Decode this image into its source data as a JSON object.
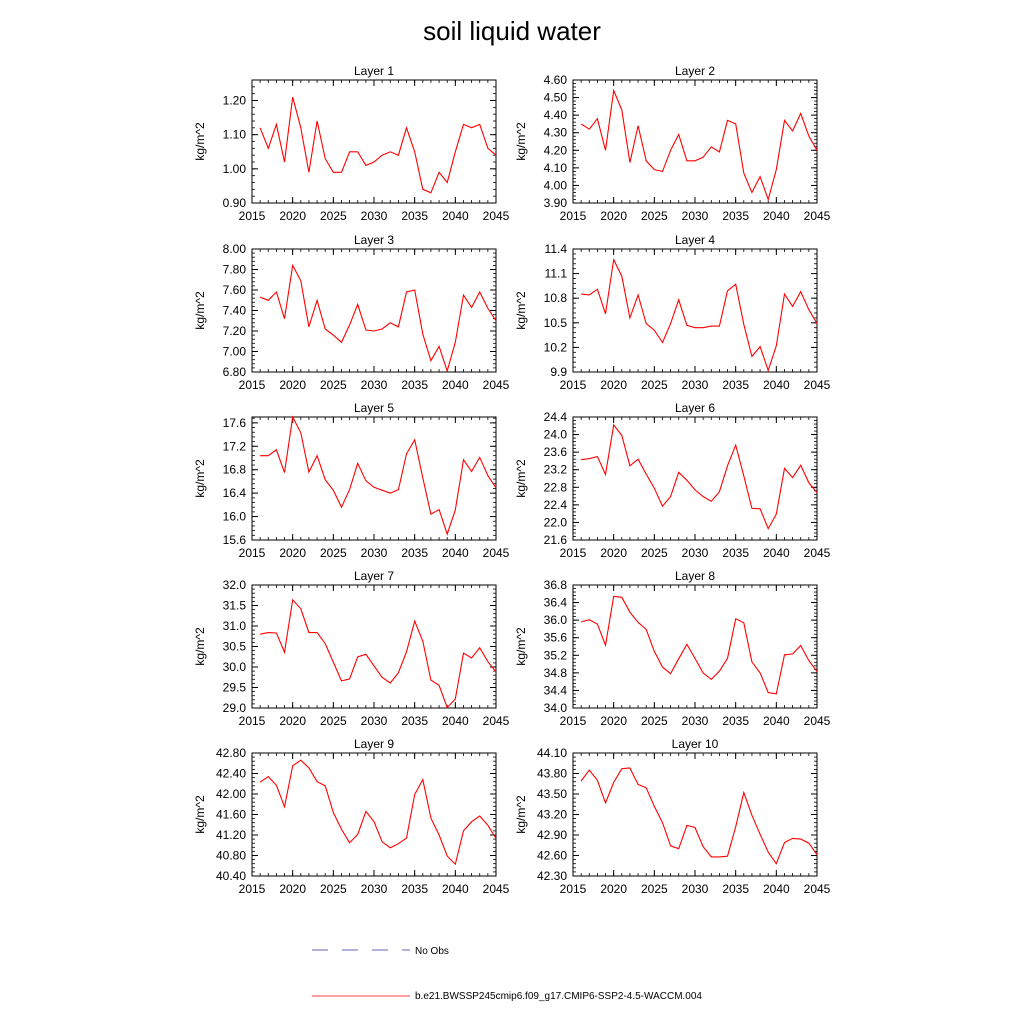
{
  "title": "soil liquid water",
  "colors": {
    "model_line": "#ff0000",
    "obs_line": "#3333aa",
    "axis": "#000000"
  },
  "legend": [
    {
      "label": "No Obs",
      "style": "dashed",
      "color": "#3333aa"
    },
    {
      "label": "b.e21.BWSSP245cmip6.f09_g17.CMIP6-SSP2-4.5-WACCM.004",
      "style": "solid",
      "color": "#ff0000"
    }
  ],
  "chart_data": [
    {
      "type": "line",
      "title": "Layer 1",
      "ylabel": "kg/m^2",
      "xlim": [
        2015,
        2045
      ],
      "xticks": [
        2015,
        2020,
        2025,
        2030,
        2035,
        2040,
        2045
      ],
      "ylim": [
        0.9,
        1.26
      ],
      "yticks": [
        "0.90",
        "1.00",
        "1.10",
        "1.20"
      ],
      "ytick_values": [
        0.9,
        1.0,
        1.1,
        1.2
      ],
      "x": [
        2016,
        2017,
        2018,
        2019,
        2020,
        2021,
        2022,
        2023,
        2024,
        2025,
        2026,
        2027,
        2028,
        2029,
        2030,
        2031,
        2032,
        2033,
        2034,
        2035,
        2036,
        2037,
        2038,
        2039,
        2040,
        2041,
        2042,
        2043,
        2044,
        2045
      ],
      "series": [
        {
          "values": [
            1.12,
            1.06,
            1.13,
            1.02,
            1.21,
            1.12,
            0.99,
            1.14,
            1.03,
            0.99,
            0.99,
            1.05,
            1.05,
            1.01,
            1.02,
            1.04,
            1.05,
            1.04,
            1.12,
            1.05,
            0.94,
            0.93,
            0.99,
            0.96,
            1.05,
            1.13,
            1.12,
            1.13,
            1.06,
            1.04
          ]
        }
      ]
    },
    {
      "type": "line",
      "title": "Layer 2",
      "ylabel": "kg/m^2",
      "xlim": [
        2015,
        2045
      ],
      "xticks": [
        2015,
        2020,
        2025,
        2030,
        2035,
        2040,
        2045
      ],
      "ylim": [
        3.9,
        4.6
      ],
      "yticks": [
        "3.90",
        "4.00",
        "4.10",
        "4.20",
        "4.30",
        "4.40",
        "4.50",
        "4.60"
      ],
      "ytick_values": [
        3.9,
        4.0,
        4.1,
        4.2,
        4.3,
        4.4,
        4.5,
        4.6
      ],
      "x": [
        2016,
        2017,
        2018,
        2019,
        2020,
        2021,
        2022,
        2023,
        2024,
        2025,
        2026,
        2027,
        2028,
        2029,
        2030,
        2031,
        2032,
        2033,
        2034,
        2035,
        2036,
        2037,
        2038,
        2039,
        2040,
        2041,
        2042,
        2043,
        2044,
        2045
      ],
      "series": [
        {
          "values": [
            4.35,
            4.32,
            4.38,
            4.2,
            4.54,
            4.43,
            4.13,
            4.34,
            4.14,
            4.09,
            4.08,
            4.2,
            4.29,
            4.14,
            4.14,
            4.16,
            4.22,
            4.19,
            4.37,
            4.35,
            4.07,
            3.96,
            4.05,
            3.92,
            4.09,
            4.37,
            4.31,
            4.41,
            4.28,
            4.2
          ]
        }
      ]
    },
    {
      "type": "line",
      "title": "Layer 3",
      "ylabel": "kg/m^2",
      "xlim": [
        2015,
        2045
      ],
      "xticks": [
        2015,
        2020,
        2025,
        2030,
        2035,
        2040,
        2045
      ],
      "ylim": [
        6.8,
        8.0
      ],
      "yticks": [
        "6.80",
        "7.00",
        "7.20",
        "7.40",
        "7.60",
        "7.80",
        "8.00"
      ],
      "ytick_values": [
        6.8,
        7.0,
        7.2,
        7.4,
        7.6,
        7.8,
        8.0
      ],
      "x": [
        2016,
        2017,
        2018,
        2019,
        2020,
        2021,
        2022,
        2023,
        2024,
        2025,
        2026,
        2027,
        2028,
        2029,
        2030,
        2031,
        2032,
        2033,
        2034,
        2035,
        2036,
        2037,
        2038,
        2039,
        2040,
        2041,
        2042,
        2043,
        2044,
        2045
      ],
      "series": [
        {
          "values": [
            7.53,
            7.5,
            7.58,
            7.32,
            7.84,
            7.69,
            7.24,
            7.5,
            7.22,
            7.16,
            7.09,
            7.26,
            7.46,
            7.21,
            7.2,
            7.22,
            7.28,
            7.24,
            7.58,
            7.6,
            7.17,
            6.91,
            7.05,
            6.81,
            7.09,
            7.55,
            7.43,
            7.58,
            7.42,
            7.3
          ]
        }
      ]
    },
    {
      "type": "line",
      "title": "Layer 4",
      "ylabel": "kg/m^2",
      "xlim": [
        2015,
        2045
      ],
      "xticks": [
        2015,
        2020,
        2025,
        2030,
        2035,
        2040,
        2045
      ],
      "ylim": [
        9.9,
        11.4
      ],
      "yticks": [
        "9.9",
        "10.2",
        "10.5",
        "10.8",
        "11.1",
        "11.4"
      ],
      "ytick_values": [
        9.9,
        10.2,
        10.5,
        10.8,
        11.1,
        11.4
      ],
      "x": [
        2016,
        2017,
        2018,
        2019,
        2020,
        2021,
        2022,
        2023,
        2024,
        2025,
        2026,
        2027,
        2028,
        2029,
        2030,
        2031,
        2032,
        2033,
        2034,
        2035,
        2036,
        2037,
        2038,
        2039,
        2040,
        2041,
        2042,
        2043,
        2044,
        2045
      ],
      "series": [
        {
          "values": [
            10.85,
            10.84,
            10.91,
            10.61,
            11.27,
            11.07,
            10.56,
            10.84,
            10.49,
            10.41,
            10.26,
            10.49,
            10.78,
            10.47,
            10.44,
            10.44,
            10.46,
            10.46,
            10.89,
            10.97,
            10.48,
            10.09,
            10.21,
            9.92,
            10.22,
            10.85,
            10.7,
            10.88,
            10.66,
            10.49
          ]
        }
      ]
    },
    {
      "type": "line",
      "title": "Layer 5",
      "ylabel": "kg/m^2",
      "xlim": [
        2015,
        2045
      ],
      "xticks": [
        2015,
        2020,
        2025,
        2030,
        2035,
        2040,
        2045
      ],
      "ylim": [
        15.6,
        17.7
      ],
      "yticks": [
        "15.6",
        "16.0",
        "16.4",
        "16.8",
        "17.2",
        "17.6"
      ],
      "ytick_values": [
        15.6,
        16.0,
        16.4,
        16.8,
        17.2,
        17.6
      ],
      "x": [
        2016,
        2017,
        2018,
        2019,
        2020,
        2021,
        2022,
        2023,
        2024,
        2025,
        2026,
        2027,
        2028,
        2029,
        2030,
        2031,
        2032,
        2033,
        2034,
        2035,
        2036,
        2037,
        2038,
        2039,
        2040,
        2041,
        2042,
        2043,
        2044,
        2045
      ],
      "series": [
        {
          "values": [
            17.04,
            17.04,
            17.14,
            16.75,
            17.7,
            17.43,
            16.76,
            17.04,
            16.63,
            16.45,
            16.16,
            16.46,
            16.91,
            16.61,
            16.5,
            16.45,
            16.4,
            16.46,
            17.07,
            17.31,
            16.66,
            16.04,
            16.12,
            15.7,
            16.11,
            16.97,
            16.77,
            17.01,
            16.7,
            16.49
          ]
        }
      ]
    },
    {
      "type": "line",
      "title": "Layer 6",
      "ylabel": "kg/m^2",
      "xlim": [
        2015,
        2045
      ],
      "xticks": [
        2015,
        2020,
        2025,
        2030,
        2035,
        2040,
        2045
      ],
      "ylim": [
        21.6,
        24.4
      ],
      "yticks": [
        "21.6",
        "22.0",
        "22.4",
        "22.8",
        "23.2",
        "23.6",
        "24.0",
        "24.4"
      ],
      "ytick_values": [
        21.6,
        22.0,
        22.4,
        22.8,
        23.2,
        23.6,
        24.0,
        24.4
      ],
      "x": [
        2016,
        2017,
        2018,
        2019,
        2020,
        2021,
        2022,
        2023,
        2024,
        2025,
        2026,
        2027,
        2028,
        2029,
        2030,
        2031,
        2032,
        2033,
        2034,
        2035,
        2036,
        2037,
        2038,
        2039,
        2040,
        2041,
        2042,
        2043,
        2044,
        2045
      ],
      "series": [
        {
          "values": [
            23.43,
            23.45,
            23.5,
            23.09,
            24.22,
            23.98,
            23.29,
            23.44,
            23.1,
            22.78,
            22.37,
            22.59,
            23.14,
            22.96,
            22.74,
            22.59,
            22.48,
            22.7,
            23.29,
            23.76,
            23.06,
            22.32,
            22.31,
            21.86,
            22.19,
            23.23,
            23.02,
            23.3,
            22.9,
            22.68
          ]
        }
      ]
    },
    {
      "type": "line",
      "title": "Layer 7",
      "ylabel": "kg/m^2",
      "xlim": [
        2015,
        2045
      ],
      "xticks": [
        2015,
        2020,
        2025,
        2030,
        2035,
        2040,
        2045
      ],
      "ylim": [
        29.0,
        32.0
      ],
      "yticks": [
        "29.0",
        "29.5",
        "30.0",
        "30.5",
        "31.0",
        "31.5",
        "32.0"
      ],
      "ytick_values": [
        29.0,
        29.5,
        30.0,
        30.5,
        31.0,
        31.5,
        32.0
      ],
      "x": [
        2016,
        2017,
        2018,
        2019,
        2020,
        2021,
        2022,
        2023,
        2024,
        2025,
        2026,
        2027,
        2028,
        2029,
        2030,
        2031,
        2032,
        2033,
        2034,
        2035,
        2036,
        2037,
        2038,
        2039,
        2040,
        2041,
        2042,
        2043,
        2044,
        2045
      ],
      "series": [
        {
          "values": [
            30.8,
            30.84,
            30.83,
            30.36,
            31.64,
            31.42,
            30.84,
            30.84,
            30.57,
            30.12,
            29.66,
            29.71,
            30.25,
            30.31,
            30.03,
            29.75,
            29.61,
            29.86,
            30.37,
            31.12,
            30.63,
            29.68,
            29.55,
            29.01,
            29.22,
            30.34,
            30.22,
            30.47,
            30.13,
            29.88
          ]
        }
      ]
    },
    {
      "type": "line",
      "title": "Layer 8",
      "ylabel": "kg/m^2",
      "xlim": [
        2015,
        2045
      ],
      "xticks": [
        2015,
        2020,
        2025,
        2030,
        2035,
        2040,
        2045
      ],
      "ylim": [
        34.0,
        36.8
      ],
      "yticks": [
        "34.0",
        "34.4",
        "34.8",
        "35.2",
        "35.6",
        "36.0",
        "36.4",
        "36.8"
      ],
      "ytick_values": [
        34.0,
        34.4,
        34.8,
        35.2,
        35.6,
        36.0,
        36.4,
        36.8
      ],
      "x": [
        2016,
        2017,
        2018,
        2019,
        2020,
        2021,
        2022,
        2023,
        2024,
        2025,
        2026,
        2027,
        2028,
        2029,
        2030,
        2031,
        2032,
        2033,
        2034,
        2035,
        2036,
        2037,
        2038,
        2039,
        2040,
        2041,
        2042,
        2043,
        2044,
        2045
      ],
      "series": [
        {
          "values": [
            35.96,
            36.01,
            35.91,
            35.43,
            36.54,
            36.52,
            36.18,
            35.95,
            35.79,
            35.29,
            34.93,
            34.78,
            35.12,
            35.45,
            35.13,
            34.8,
            34.65,
            34.84,
            35.13,
            36.03,
            35.94,
            35.05,
            34.8,
            34.35,
            34.32,
            35.21,
            35.23,
            35.42,
            35.08,
            34.83
          ]
        }
      ]
    },
    {
      "type": "line",
      "title": "Layer 9",
      "ylabel": "kg/m^2",
      "xlim": [
        2015,
        2045
      ],
      "xticks": [
        2015,
        2020,
        2025,
        2030,
        2035,
        2040,
        2045
      ],
      "ylim": [
        40.4,
        42.8
      ],
      "yticks": [
        "40.40",
        "40.80",
        "41.20",
        "41.60",
        "42.00",
        "42.40",
        "42.80"
      ],
      "ytick_values": [
        40.4,
        40.8,
        41.2,
        41.6,
        42.0,
        42.4,
        42.8
      ],
      "x": [
        2016,
        2017,
        2018,
        2019,
        2020,
        2021,
        2022,
        2023,
        2024,
        2025,
        2026,
        2027,
        2028,
        2029,
        2030,
        2031,
        2032,
        2033,
        2034,
        2035,
        2036,
        2037,
        2038,
        2039,
        2040,
        2041,
        2042,
        2043,
        2044,
        2045
      ],
      "series": [
        {
          "values": [
            42.23,
            42.34,
            42.17,
            41.75,
            42.55,
            42.66,
            42.51,
            42.24,
            42.16,
            41.64,
            41.31,
            41.05,
            41.21,
            41.66,
            41.46,
            41.07,
            40.95,
            41.03,
            41.14,
            41.99,
            42.28,
            41.53,
            41.2,
            40.79,
            40.63,
            41.28,
            41.46,
            41.57,
            41.39,
            41.13
          ]
        }
      ]
    },
    {
      "type": "line",
      "title": "Layer 10",
      "ylabel": "kg/m^2",
      "xlim": [
        2015,
        2045
      ],
      "xticks": [
        2015,
        2020,
        2025,
        2030,
        2035,
        2040,
        2045
      ],
      "ylim": [
        42.3,
        44.1
      ],
      "yticks": [
        "42.30",
        "42.60",
        "42.90",
        "43.20",
        "43.50",
        "43.80",
        "44.10"
      ],
      "ytick_values": [
        42.3,
        42.6,
        42.9,
        43.2,
        43.5,
        43.8,
        44.1
      ],
      "x": [
        2016,
        2017,
        2018,
        2019,
        2020,
        2021,
        2022,
        2023,
        2024,
        2025,
        2026,
        2027,
        2028,
        2029,
        2030,
        2031,
        2032,
        2033,
        2034,
        2035,
        2036,
        2037,
        2038,
        2039,
        2040,
        2041,
        2042,
        2043,
        2044,
        2045
      ],
      "series": [
        {
          "values": [
            43.69,
            43.85,
            43.7,
            43.37,
            43.67,
            43.87,
            43.88,
            43.64,
            43.59,
            43.32,
            43.08,
            42.74,
            42.7,
            43.04,
            43.01,
            42.73,
            42.58,
            42.58,
            42.59,
            43.02,
            43.52,
            43.19,
            42.91,
            42.65,
            42.48,
            42.79,
            42.85,
            42.84,
            42.78,
            42.61
          ]
        }
      ]
    }
  ]
}
